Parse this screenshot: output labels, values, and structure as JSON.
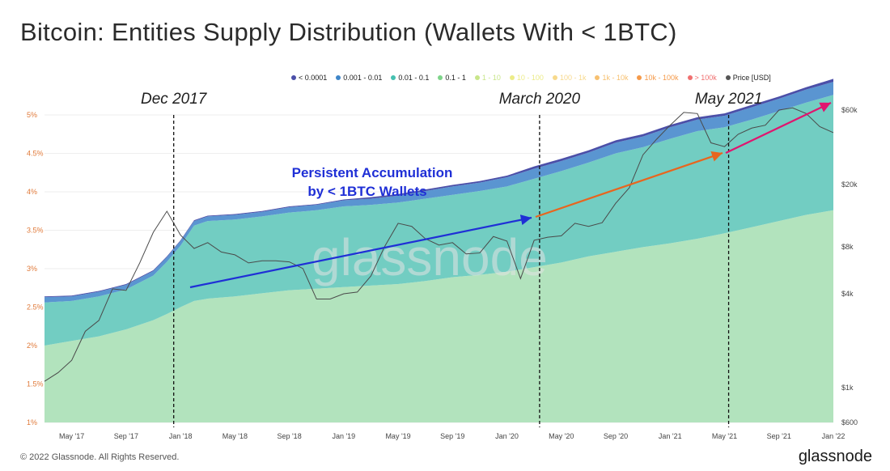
{
  "title": "Bitcoin: Entities Supply Distribution (Wallets With < 1BTC)",
  "legend": [
    {
      "label": "< 0.0001",
      "color": "#4b4fa8"
    },
    {
      "label": "0.001 - 0.01",
      "color": "#3f86c8"
    },
    {
      "label": "0.01 - 0.1",
      "color": "#45c0b0"
    },
    {
      "label": "0.1 - 1",
      "color": "#7ed48a"
    },
    {
      "label": "1 - 10",
      "color": "#c8e68a"
    },
    {
      "label": "10 - 100",
      "color": "#ecec88"
    },
    {
      "label": "100 - 1k",
      "color": "#f7d98c"
    },
    {
      "label": "1k - 10k",
      "color": "#f7c070"
    },
    {
      "label": "10k - 100k",
      "color": "#f59a4a"
    },
    {
      "label": "> 100k",
      "color": "#f07070"
    },
    {
      "label": "Price [USD]",
      "color": "#555555"
    }
  ],
  "chart_data": {
    "type": "area",
    "title": "Bitcoin: Entities Supply Distribution (Wallets With < 1BTC)",
    "x_ticks": [
      "May '17",
      "Sep '17",
      "Jan '18",
      "May '18",
      "Sep '18",
      "Jan '19",
      "May '19",
      "Sep '19",
      "Jan '20",
      "May '20",
      "Sep '20",
      "Jan '21",
      "May '21",
      "Sep '21",
      "Jan '22"
    ],
    "y_left_ticks": [
      "1%",
      "1.5%",
      "2%",
      "2.5%",
      "3%",
      "3.5%",
      "4%",
      "4.5%",
      "5%"
    ],
    "y_right_ticks": [
      "$600",
      "$1k",
      "$4k",
      "$8k",
      "$20k",
      "$60k"
    ],
    "x_range": [
      "2017-03",
      "2022-01"
    ],
    "ylim_left": [
      1,
      5
    ],
    "ylim_right_usd": [
      600,
      60000
    ],
    "scale_right": "log",
    "x_months": [
      0,
      2,
      4,
      6,
      8,
      9,
      10,
      11,
      12,
      14,
      16,
      18,
      20,
      22,
      24,
      26,
      28,
      30,
      32,
      34,
      36,
      38,
      40,
      42,
      44,
      46,
      48,
      50,
      52,
      54,
      56,
      58
    ],
    "series": [
      {
        "name": "0.1 - 1",
        "values": [
          1.0,
          1.06,
          1.12,
          1.21,
          1.33,
          1.41,
          1.5,
          1.58,
          1.61,
          1.64,
          1.68,
          1.72,
          1.74,
          1.76,
          1.78,
          1.8,
          1.84,
          1.89,
          1.92,
          1.96,
          2.02,
          2.08,
          2.16,
          2.22,
          2.28,
          2.33,
          2.39,
          2.46,
          2.54,
          2.62,
          2.7,
          2.76
        ]
      },
      {
        "name": "0.01 - 0.1",
        "values": [
          0.56,
          0.52,
          0.52,
          0.52,
          0.58,
          0.68,
          0.8,
          0.98,
          1.01,
          1.0,
          1.0,
          1.01,
          1.02,
          1.05,
          1.05,
          1.06,
          1.07,
          1.07,
          1.09,
          1.11,
          1.15,
          1.19,
          1.22,
          1.28,
          1.3,
          1.36,
          1.4,
          1.38,
          1.4,
          1.43,
          1.46,
          1.5
        ]
      },
      {
        "name": "0.001 - 0.01",
        "values": [
          0.07,
          0.06,
          0.06,
          0.06,
          0.06,
          0.06,
          0.06,
          0.06,
          0.06,
          0.06,
          0.06,
          0.07,
          0.07,
          0.08,
          0.08,
          0.09,
          0.1,
          0.11,
          0.11,
          0.12,
          0.13,
          0.13,
          0.13,
          0.14,
          0.14,
          0.15,
          0.15,
          0.15,
          0.16,
          0.16,
          0.17,
          0.17
        ]
      },
      {
        "name": "< 0.0001",
        "values": [
          0.01,
          0.01,
          0.01,
          0.01,
          0.01,
          0.01,
          0.01,
          0.01,
          0.01,
          0.01,
          0.01,
          0.01,
          0.01,
          0.01,
          0.02,
          0.02,
          0.02,
          0.02,
          0.02,
          0.02,
          0.03,
          0.03,
          0.03,
          0.03,
          0.03,
          0.03,
          0.03,
          0.03,
          0.03,
          0.03,
          0.03,
          0.04
        ]
      }
    ],
    "price_series": {
      "name": "Price [USD]",
      "x_months": [
        0,
        1,
        2,
        3,
        4,
        5,
        6,
        7,
        8,
        9,
        10,
        11,
        12,
        13,
        14,
        15,
        16,
        17,
        18,
        19,
        20,
        21,
        22,
        23,
        24,
        25,
        26,
        27,
        28,
        29,
        30,
        31,
        32,
        33,
        34,
        35,
        36,
        37,
        38,
        39,
        40,
        41,
        42,
        43,
        44,
        45,
        46,
        47,
        48,
        49,
        50,
        51,
        52,
        53,
        54,
        55,
        56,
        57,
        58
      ],
      "values": [
        1100,
        1250,
        1500,
        2300,
        2700,
        4300,
        4200,
        6300,
        9900,
        13500,
        9500,
        7800,
        8500,
        7400,
        7100,
        6300,
        6500,
        6500,
        6400,
        5800,
        3700,
        3700,
        4000,
        4100,
        5200,
        8000,
        11300,
        10800,
        9000,
        8200,
        8500,
        7200,
        7300,
        9300,
        8700,
        5000,
        8800,
        9200,
        9400,
        11300,
        10800,
        11400,
        15200,
        19100,
        31000,
        39000,
        48000,
        58000,
        57000,
        37000,
        35000,
        42000,
        46000,
        48000,
        60000,
        62000,
        57000,
        47000,
        43000
      ]
    }
  },
  "events": [
    {
      "label": "Dec 2017"
    },
    {
      "label": "March 2020"
    },
    {
      "label": "May 2021"
    }
  ],
  "annotation": {
    "line1": "Persistent Accumulation",
    "line2": "by < 1BTC Wallets",
    "color": "#1f2fd6"
  },
  "trend_colors": {
    "blue": "#1f2fd6",
    "orange": "#e8651e",
    "magenta": "#e0156f"
  },
  "watermark": "glassnode",
  "footer": {
    "copyright": "© 2022 Glassnode. All Rights Reserved.",
    "brand": "glassnode"
  }
}
